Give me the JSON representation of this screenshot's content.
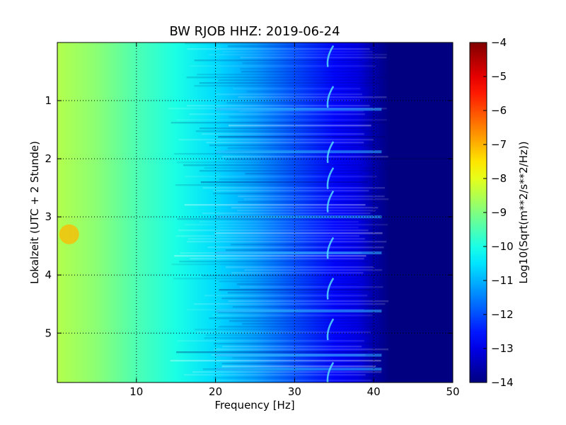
{
  "chart_data": {
    "type": "heatmap",
    "title": "BW RJOB HHZ: 2019-06-24",
    "xlabel": "Frequency [Hz]",
    "ylabel": "Lokalzeit (UTC + 2 Stunde)",
    "xlim": [
      0,
      50
    ],
    "ylim": [
      5.85,
      0
    ],
    "xticks": [
      10,
      20,
      30,
      40,
      50
    ],
    "xtick_labels": [
      "10",
      "20",
      "30",
      "40",
      "50"
    ],
    "yticks": [
      1,
      2,
      3,
      4,
      5
    ],
    "ytick_labels": [
      "1",
      "2",
      "3",
      "4",
      "5"
    ],
    "grid": true,
    "y_inverted": true,
    "colorbar": {
      "label": "Log10(Sqrt(m**2/s**2/Hz))",
      "range": [
        -14,
        -4
      ],
      "ticks": [
        -4,
        -5,
        -6,
        -7,
        -8,
        -9,
        -10,
        -11,
        -12,
        -13,
        -14
      ],
      "tick_labels": [
        "−4",
        "−5",
        "−6",
        "−7",
        "−8",
        "−9",
        "−10",
        "−11",
        "−12",
        "−13",
        "−14"
      ],
      "colormap": "jet"
    },
    "profile_description": "log amplitude vs frequency, approximately constant over time",
    "frequency_profile": [
      {
        "hz": 0,
        "value": -8.5
      },
      {
        "hz": 5,
        "value": -8.9
      },
      {
        "hz": 10,
        "value": -9.5
      },
      {
        "hz": 15,
        "value": -10.0
      },
      {
        "hz": 20,
        "value": -10.6
      },
      {
        "hz": 25,
        "value": -11.2
      },
      {
        "hz": 30,
        "value": -12.0
      },
      {
        "hz": 35,
        "value": -12.7
      },
      {
        "hz": 38,
        "value": -13.0
      },
      {
        "hz": 40,
        "value": -13.6
      },
      {
        "hz": 42,
        "value": -14.0
      },
      {
        "hz": 50,
        "value": -14.0
      }
    ]
  }
}
